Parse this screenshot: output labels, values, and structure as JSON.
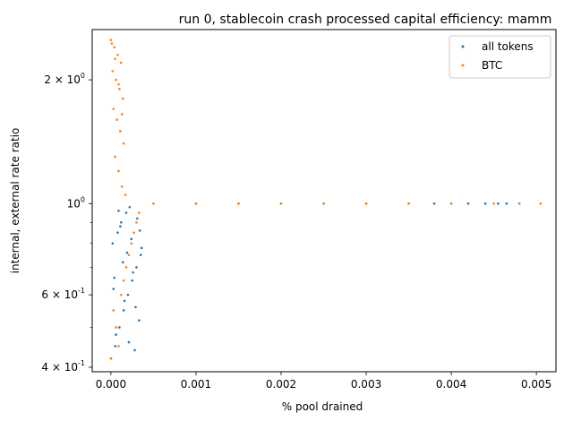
{
  "chart_data": {
    "type": "scatter",
    "title": "run 0, stablecoin crash processed capital efficiency: mamm",
    "xlabel": "% pool drained",
    "ylabel": "internal, external rate ratio",
    "xlim": [
      -0.00022,
      0.00523
    ],
    "ylim": [
      0.39,
      2.65
    ],
    "yscale": "log",
    "x_ticks": [
      {
        "value": 0.0,
        "label": "0.000"
      },
      {
        "value": 0.001,
        "label": "0.001"
      },
      {
        "value": 0.002,
        "label": "0.002"
      },
      {
        "value": 0.003,
        "label": "0.003"
      },
      {
        "value": 0.004,
        "label": "0.004"
      },
      {
        "value": 0.005,
        "label": "0.005"
      }
    ],
    "y_ticks": [
      {
        "value": 0.4,
        "base": "4",
        "exp": "-1"
      },
      {
        "value": 0.6,
        "base": "6",
        "exp": "-1"
      },
      {
        "value": 1.0,
        "base": "",
        "exp": "0"
      },
      {
        "value": 2.0,
        "base": "2",
        "exp": "0"
      }
    ],
    "y_minor_ticks": [
      0.5,
      0.7,
      0.8,
      0.9
    ],
    "legend": {
      "placement": "top-right"
    },
    "series": [
      {
        "name": "all tokens",
        "color": "#1f77b4",
        "points": [
          [
            0.0,
            0.42
          ],
          [
            5e-05,
            0.45
          ],
          [
            0.0001,
            0.5
          ],
          [
            0.00015,
            0.55
          ],
          [
            0.0002,
            0.6
          ],
          [
            0.00025,
            0.65
          ],
          [
            0.0003,
            0.7
          ],
          [
            0.00035,
            0.75
          ],
          [
            2e-05,
            0.8
          ],
          [
            8e-05,
            0.85
          ],
          [
            0.00012,
            0.9
          ],
          [
            0.00018,
            0.95
          ],
          [
            0.00022,
            0.98
          ],
          [
            0.00028,
            0.44
          ],
          [
            0.00033,
            0.52
          ],
          [
            3e-05,
            0.62
          ],
          [
            0.00014,
            0.72
          ],
          [
            0.00024,
            0.82
          ],
          [
            0.00031,
            0.92
          ],
          [
            6e-05,
            0.48
          ],
          [
            0.00016,
            0.58
          ],
          [
            0.00026,
            0.68
          ],
          [
            0.00036,
            0.78
          ],
          [
            0.00011,
            0.88
          ],
          [
            0.00021,
            0.46
          ],
          [
            0.00029,
            0.56
          ],
          [
            4e-05,
            0.66
          ],
          [
            0.00019,
            0.76
          ],
          [
            0.00034,
            0.86
          ],
          [
            9e-05,
            0.96
          ],
          [
            0.001,
            1.0
          ],
          [
            0.0015,
            1.0
          ],
          [
            0.002,
            1.0
          ],
          [
            0.0025,
            1.0
          ],
          [
            0.003,
            1.0
          ],
          [
            0.0035,
            1.0
          ],
          [
            0.0038,
            1.0
          ],
          [
            0.004,
            1.0
          ],
          [
            0.0042,
            1.0
          ],
          [
            0.0044,
            1.0
          ],
          [
            0.00455,
            1.0
          ],
          [
            0.00465,
            1.0
          ],
          [
            0.0048,
            1.0
          ]
        ]
      },
      {
        "name": "BTC",
        "color": "#ff7f0e",
        "points": [
          [
            0.0,
            2.5
          ],
          [
            4e-05,
            2.4
          ],
          [
            8e-05,
            2.3
          ],
          [
            0.00012,
            2.2
          ],
          [
            2e-05,
            2.1
          ],
          [
            6e-05,
            2.0
          ],
          [
            0.0001,
            1.9
          ],
          [
            0.00014,
            1.8
          ],
          [
            3e-05,
            1.7
          ],
          [
            7e-05,
            1.6
          ],
          [
            0.00011,
            1.5
          ],
          [
            0.00015,
            1.4
          ],
          [
            5e-05,
            1.3
          ],
          [
            9e-05,
            1.2
          ],
          [
            0.00013,
            1.1
          ],
          [
            0.00017,
            1.05
          ],
          [
            1e-05,
            2.45
          ],
          [
            5e-05,
            2.25
          ],
          [
            9e-05,
            1.95
          ],
          [
            0.00013,
            1.65
          ],
          [
            0.0,
            0.42
          ],
          [
            6e-05,
            0.5
          ],
          [
            0.00012,
            0.6
          ],
          [
            0.00018,
            0.7
          ],
          [
            0.00024,
            0.8
          ],
          [
            0.0003,
            0.9
          ],
          [
            3e-05,
            0.55
          ],
          [
            0.00015,
            0.65
          ],
          [
            0.00021,
            0.75
          ],
          [
            0.00027,
            0.85
          ],
          [
            9e-05,
            0.45
          ],
          [
            0.00033,
            0.95
          ],
          [
            0.0005,
            1.0
          ],
          [
            0.001,
            1.0
          ],
          [
            0.0015,
            1.0
          ],
          [
            0.002,
            1.0
          ],
          [
            0.0025,
            1.0
          ],
          [
            0.003,
            1.0
          ],
          [
            0.0035,
            1.0
          ],
          [
            0.004,
            1.0
          ],
          [
            0.0045,
            1.0
          ],
          [
            0.0048,
            1.0
          ],
          [
            0.00505,
            1.0
          ]
        ]
      }
    ]
  }
}
